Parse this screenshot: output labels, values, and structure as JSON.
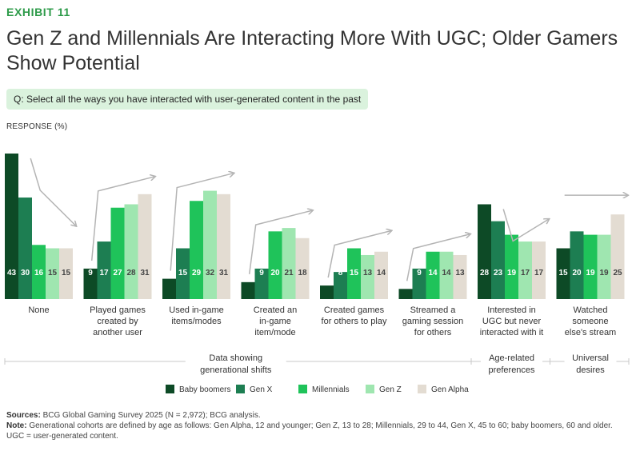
{
  "header": {
    "exhibit": "EXHIBIT 11",
    "title_line1": "Gen Z and Millennials Are Interacting More With UGC; Older Gamers",
    "title_line2": "Show Potential",
    "question": "Q: Select all the ways you have interacted with user-generated content in the past",
    "response_label": "RESPONSE (%)"
  },
  "colors": {
    "Baby boomers": "#0d4a26",
    "Gen X": "#1d7e52",
    "Millennials": "#1fc35a",
    "Gen Z": "#9fe6b0",
    "Gen Alpha": "#e3dcd2",
    "arrow": "#b4b4b4",
    "divider": "#c8c8c8"
  },
  "chart_data": {
    "type": "bar",
    "ylabel": "RESPONSE (%)",
    "ylim": [
      0,
      43
    ],
    "series_names": [
      "Baby boomers",
      "Gen X",
      "Millennials",
      "Gen Z",
      "Gen Alpha"
    ],
    "categories": [
      {
        "lines": [
          "None"
        ],
        "values": [
          43,
          30,
          16,
          15,
          15
        ],
        "trend": "down"
      },
      {
        "lines": [
          "Played games",
          "created by",
          "another user"
        ],
        "values": [
          9,
          17,
          27,
          28,
          31
        ],
        "trend": "up"
      },
      {
        "lines": [
          "Used in-game",
          "items/modes"
        ],
        "values": [
          6,
          15,
          29,
          32,
          31
        ],
        "trend": "up"
      },
      {
        "lines": [
          "Created an",
          "in-game",
          "item/mode"
        ],
        "values": [
          5,
          9,
          20,
          21,
          18
        ],
        "trend": "up"
      },
      {
        "lines": [
          "Created games",
          "for others to play"
        ],
        "values": [
          4,
          8,
          15,
          13,
          14
        ],
        "trend": "up"
      },
      {
        "lines": [
          "Streamed a",
          "gaming session",
          "for others"
        ],
        "values": [
          3,
          9,
          14,
          14,
          13
        ],
        "trend": "up"
      },
      {
        "lines": [
          "Interested in",
          "UGC but never",
          "interacted with it"
        ],
        "values": [
          28,
          23,
          19,
          17,
          17
        ],
        "trend": "down"
      },
      {
        "lines": [
          "Watched",
          "someone",
          "else's stream"
        ],
        "values": [
          15,
          20,
          19,
          19,
          25
        ],
        "trend": "flat"
      }
    ],
    "groups": [
      {
        "lines": [
          "Data showing",
          "generational shifts"
        ],
        "category_span": [
          0,
          5
        ]
      },
      {
        "lines": [
          "Age-related",
          "preferences"
        ],
        "category_span": [
          6,
          6
        ]
      },
      {
        "lines": [
          "Universal",
          "desires"
        ],
        "category_span": [
          7,
          7
        ]
      }
    ]
  },
  "footer": {
    "sources_label": "Sources:",
    "sources_text": "BCG Global Gaming Survey 2025 (N = 2,972); BCG analysis.",
    "note_label": "Note:",
    "note_text": "Generational cohorts are defined by age as follows: Gen Alpha, 12 and younger; Gen Z, 13 to 28; Millennials, 29 to 44, Gen X, 45 to 60; baby boomers, 60 and older. UGC = user-generated content."
  }
}
